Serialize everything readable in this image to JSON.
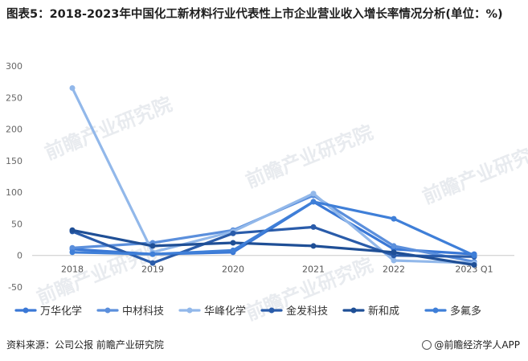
{
  "title": "图表5：2018-2023年中国化工新材料行业代表性上市企业营业收入增长率情况分析(单位：%)",
  "source": "资料来源：公司公报 前瞻产业研究院",
  "brand": "@前瞻经济学人APP",
  "watermark": "前瞻产业研究院",
  "chart_data": {
    "type": "line",
    "categories": [
      "2018",
      "2019",
      "2020",
      "2021",
      "2022",
      "2023 Q1"
    ],
    "ylim": [
      -50,
      300
    ],
    "yticks": [
      -50,
      0,
      50,
      100,
      150,
      200,
      250,
      300
    ],
    "grid": false,
    "legend": "bottom",
    "series": [
      {
        "name": "万华化学",
        "color": "#3a78d6",
        "values": [
          10,
          2,
          5,
          85,
          10,
          2
        ]
      },
      {
        "name": "中材科技",
        "color": "#5b8fdc",
        "values": [
          12,
          20,
          40,
          95,
          15,
          -10
        ]
      },
      {
        "name": "华峰化学",
        "color": "#92b8ea",
        "values": [
          265,
          5,
          38,
          98,
          -8,
          -12
        ]
      },
      {
        "name": "金发科技",
        "color": "#2a5caa",
        "values": [
          38,
          -12,
          35,
          45,
          0,
          -2
        ]
      },
      {
        "name": "新和成",
        "color": "#1f4f96",
        "values": [
          40,
          15,
          20,
          15,
          5,
          -15
        ]
      },
      {
        "name": "多氟多",
        "color": "#3f7fd8",
        "values": [
          5,
          2,
          8,
          85,
          58,
          0
        ]
      }
    ]
  }
}
